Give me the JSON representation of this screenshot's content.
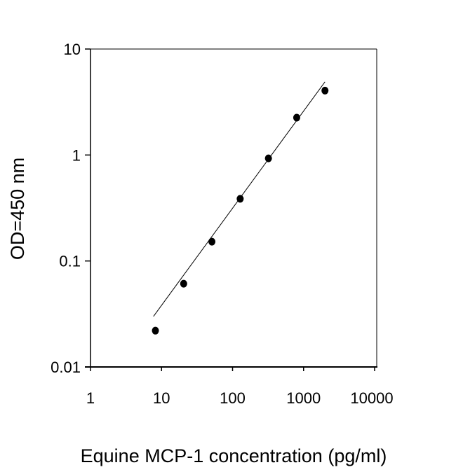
{
  "chart_data": {
    "type": "scatter",
    "title": "",
    "xlabel": "Equine MCP-1 concentration (pg/ml)",
    "ylabel": "OD=450 nm",
    "xscale": "log",
    "yscale": "log",
    "xlim": [
      1,
      10000
    ],
    "ylim": [
      0.01,
      10
    ],
    "xticks": [
      1,
      10,
      100,
      1000,
      10000
    ],
    "xtick_labels": [
      "1",
      "10",
      "100",
      "1000",
      "10000"
    ],
    "yticks": [
      0.01,
      0.1,
      1,
      10
    ],
    "ytick_labels": [
      "0.01",
      "0.1",
      "1",
      "10"
    ],
    "grid": false,
    "points": [
      {
        "x": 8.2,
        "y": 0.022
      },
      {
        "x": 20.5,
        "y": 0.061
      },
      {
        "x": 51.2,
        "y": 0.152
      },
      {
        "x": 128,
        "y": 0.386
      },
      {
        "x": 320,
        "y": 0.93
      },
      {
        "x": 800,
        "y": 2.25
      },
      {
        "x": 2000,
        "y": 4.05
      }
    ],
    "fit_line": [
      {
        "x": 7.7,
        "y": 0.03
      },
      {
        "x": 2000,
        "y": 4.9
      }
    ],
    "marker_color": "#000000",
    "line_color": "#000000"
  }
}
